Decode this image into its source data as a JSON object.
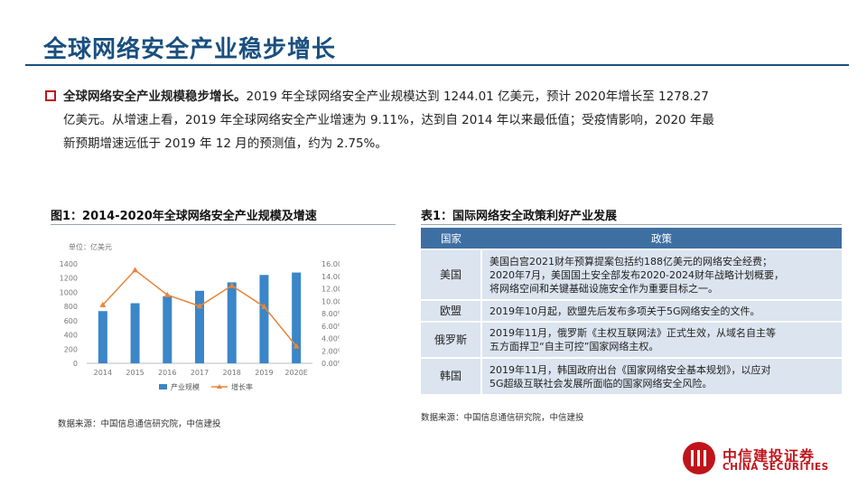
{
  "page": {
    "title": "全球网络安全产业稳步增长",
    "intro_lead": "全球网络安全产业规模稳步增长。",
    "intro_line1": "2019 年全球网络安全产业规模达到 1244.01 亿美元，预计 2020年增长至 1278.27",
    "intro_line2": "亿美元。从增速上看，2019 年全球网络安全产业增速为 9.11%，达到自 2014 年以来最低值；受疫情影响，2020 年最",
    "intro_line3": "新预期增速远低于 2019 年 12 月的预测值，约为 2.75%。"
  },
  "figure": {
    "caption": "图1：2014-2020年全球网络安全产业规模及增速",
    "source": "数据来源：中国信息通信研究院，中信建投"
  },
  "chart_data": {
    "type": "bar+line",
    "unit_label": "单位：亿美元",
    "categories": [
      "2014",
      "2015",
      "2016",
      "2017",
      "2018",
      "2019",
      "2020E"
    ],
    "series": [
      {
        "name": "产业规模",
        "type": "bar",
        "axis": "left",
        "color": "#3a86c8",
        "values": [
          735,
          846,
          945,
          1021,
          1140,
          1244.01,
          1278.27
        ]
      },
      {
        "name": "增长率",
        "type": "line",
        "axis": "right",
        "color": "#e8853a",
        "values": [
          9.4,
          15.0,
          11.0,
          9.2,
          12.5,
          9.11,
          2.75
        ]
      }
    ],
    "y_left": {
      "min": 0,
      "max": 1400,
      "ticks": [
        "0",
        "200",
        "400",
        "600",
        "800",
        "1000",
        "1200",
        "1400"
      ]
    },
    "y_right": {
      "min": 0,
      "max": 16,
      "ticks": [
        "0.00%",
        "2.00%",
        "4.00%",
        "6.00%",
        "8.00%",
        "10.00%",
        "12.00%",
        "14.00%",
        "16.00%"
      ]
    },
    "legend_position": "bottom",
    "grid": false
  },
  "table": {
    "caption": "表1：国际网络安全政策利好产业发展",
    "headers": [
      "国家",
      "政策"
    ],
    "rows": [
      {
        "country": "美国",
        "lines": [
          "美国白宫2021财年预算提案包括约188亿美元的网络安全经费；",
          "2020年7月，美国国土安全部发布2020-2024财年战略计划概要，",
          "将网络空间和关键基础设施安全作为重要目标之一。"
        ]
      },
      {
        "country": "欧盟",
        "lines": [
          "2019年10月起，欧盟先后发布多项关于5G网络安全的文件。"
        ]
      },
      {
        "country": "俄罗斯",
        "lines": [
          "2019年11月，俄罗斯《主权互联网法》正式生效，从域名自主等",
          "五方面捍卫“自主可控”国家网络主权。"
        ]
      },
      {
        "country": "韩国",
        "lines": [
          "2019年11月，韩国政府出台《国家网络安全基本规划》，以应对",
          "5G超级互联社会发展所面临的国家网络安全风险。"
        ]
      }
    ],
    "source": "数据来源：中国信息通信研究院，中信建投"
  },
  "logo": {
    "cn": "中信建投证券",
    "en": "CHINA SECURITIES"
  },
  "colors": {
    "title": "#1a4f7f",
    "bullet": "#c0141b",
    "header_bg": "#3e6fa3",
    "cell_bg": "#dbe4ef",
    "brand": "#c0141b"
  }
}
